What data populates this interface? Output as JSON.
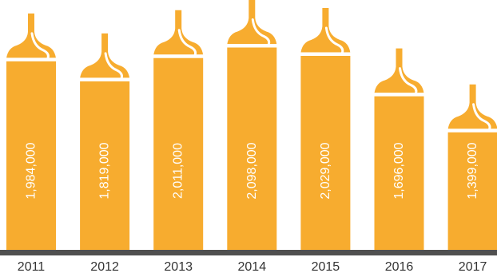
{
  "chart_data": {
    "type": "bar",
    "categories": [
      "2011",
      "2012",
      "2013",
      "2014",
      "2015",
      "2016",
      "2017"
    ],
    "values": [
      1984000,
      1819000,
      2011000,
      2098000,
      2029000,
      1696000,
      1399000
    ],
    "value_labels": [
      "1,984,000",
      "1,819,000",
      "2,011,000",
      "2,098,000",
      "2,029,000",
      "1,696,000",
      "1,399,000"
    ],
    "title": "",
    "xlabel": "",
    "ylabel": "",
    "grid": false,
    "legend": "none"
  },
  "colors": {
    "bar": "#f7ac2f",
    "cap_line": "#ffffff",
    "baseline": "#505050",
    "label": "#333333",
    "value_label": "#ffffff"
  }
}
